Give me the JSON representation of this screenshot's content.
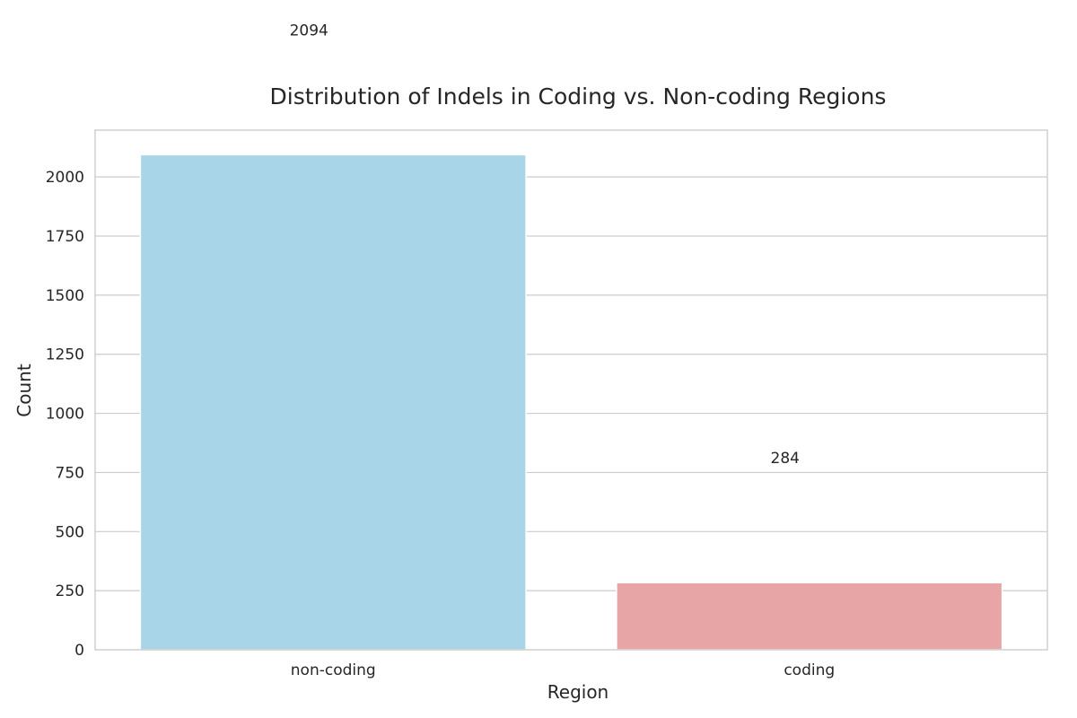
{
  "chart_data": {
    "type": "bar",
    "title": "Distribution of Indels in Coding vs. Non-coding Regions",
    "xlabel": "Region",
    "ylabel": "Count",
    "categories": [
      "non-coding",
      "coding"
    ],
    "values": [
      2094,
      284
    ],
    "data_labels": [
      "2094",
      "284"
    ],
    "colors": [
      "#a8d5e8",
      "#e8a5a6"
    ],
    "ylim": [
      0,
      2198
    ],
    "yticks": [
      0,
      250,
      500,
      750,
      1000,
      1250,
      1500,
      1750,
      2000
    ],
    "grid": true,
    "legend": "none"
  }
}
